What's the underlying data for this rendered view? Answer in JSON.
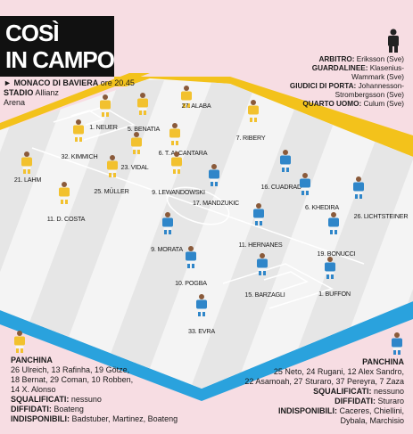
{
  "title": {
    "line1": "COSÌ",
    "line2": "IN CAMPO"
  },
  "venue": {
    "arrow": "►",
    "city": "MONACO DI BAVIERA",
    "time": "ore 20.45",
    "stadium_label": "STADIO",
    "stadium": "Allianz",
    "stadium2": "Arena"
  },
  "officials": [
    {
      "role": "ARBITRO:",
      "name": "Eriksson (Sve)"
    },
    {
      "role": "GUARDALINEE:",
      "name": "Klasenius-"
    },
    {
      "role": "",
      "name": "Wammark (Sve)"
    },
    {
      "role": "GIUDICI DI PORTA:",
      "name": "Johannesson-"
    },
    {
      "role": "",
      "name": "Strombergsson (Sve)"
    },
    {
      "role": "QUARTO UOMO:",
      "name": "Culum (Sve)"
    }
  ],
  "colors": {
    "background": "#f7dde3",
    "pitch_light": "#f4f4f4",
    "pitch_dark": "#e3e3e3",
    "bayern_border": "#f3c21b",
    "juve_border": "#2aa2dd",
    "bayern_kit": "#f2c12e",
    "juve_kit": "#2f86c9",
    "title_bg": "#111111"
  },
  "bayern_players": [
    {
      "label": "1. NEUER"
    },
    {
      "label": "5. BENATIA"
    },
    {
      "label": "27. ALABA"
    },
    {
      "label": "7. RIBERY"
    },
    {
      "label": "32. KIMMICH"
    },
    {
      "label": "23. VIDAL"
    },
    {
      "label": "6. T. ALCANTARA"
    },
    {
      "label": "21. LAHM"
    },
    {
      "label": "25. MÜLLER"
    },
    {
      "label": "9. LEWANDOWSKI"
    },
    {
      "label": "11. D. COSTA"
    }
  ],
  "juve_players": [
    {
      "label": "16. CUADRADO"
    },
    {
      "label": "17. MANDZUKIC"
    },
    {
      "label": "6. KHEDIRA"
    },
    {
      "label": "26. LICHTSTEINER"
    },
    {
      "label": "11. HERNANES"
    },
    {
      "label": "9. MORATA"
    },
    {
      "label": "19. BONUCCI"
    },
    {
      "label": "10. POGBA"
    },
    {
      "label": "15. BARZAGLI"
    },
    {
      "label": "1. BUFFON"
    },
    {
      "label": "33. EVRA"
    }
  ],
  "bench_left": {
    "title": "PANCHINA",
    "players_1": "26 Ulreich, 13 Rafinha, 19 Götze,",
    "players_2": "18 Bernat, 29 Coman, 10 Robben,",
    "players_3": "14 X. Alonso",
    "squalificati_label": "SQUALIFICATI:",
    "squalificati": "nessuno",
    "diffidati_label": "DIFFIDATI:",
    "diffidati": "Boateng",
    "indisponibili_label": "INDISPONIBILI:",
    "indisponibili": "Badstuber, Martinez, Boateng"
  },
  "bench_right": {
    "title": "PANCHINA",
    "players_1": "25 Neto, 24 Rugani, 12 Alex Sandro,",
    "players_2": "22 Asamoah, 27 Sturaro, 37 Pereyra, 7 Zaza",
    "squalificati_label": "SQUALIFICATI:",
    "squalificati": "nessuno",
    "diffidati_label": "DIFFIDATI:",
    "diffidati": "Sturaro",
    "indisponibili_label": "INDISPONIBILI:",
    "indisponibili": "Caceres, Chiellini,",
    "indisponibili2": "Dybala, Marchisio"
  }
}
